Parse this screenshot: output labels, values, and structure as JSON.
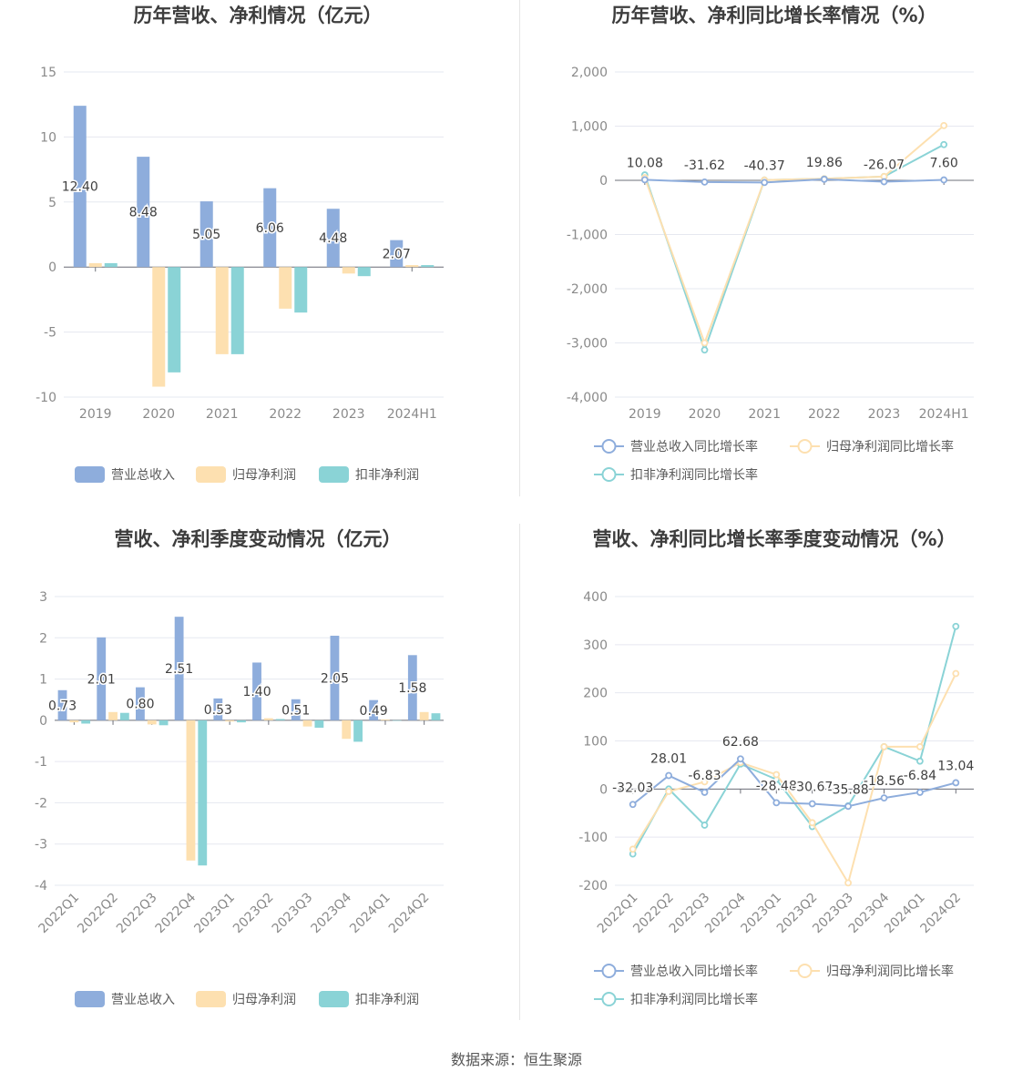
{
  "colors": {
    "revenue": "#8eaddc",
    "net_profit": "#fde0b0",
    "deducted_profit": "#8ad3d6",
    "grid": "#e6e8f0",
    "axis": "#6e7079",
    "text": "#8a8a8a"
  },
  "source_text": "数据来源：恒生聚源",
  "chart_data": [
    {
      "type": "bar",
      "title": "历年营收、净利情况（亿元）",
      "categories": [
        "2019",
        "2020",
        "2021",
        "2022",
        "2023",
        "2024H1"
      ],
      "ylim": [
        -10,
        15
      ],
      "y_ticks": [
        -10,
        -5,
        0,
        5,
        10,
        15
      ],
      "grid": true,
      "legend_position": "bottom",
      "series": [
        {
          "name": "营业总收入",
          "values": [
            12.4,
            8.48,
            5.05,
            6.06,
            4.48,
            2.07
          ],
          "labels": [
            "12.40",
            "8.48",
            "5.05",
            "6.06",
            "4.48",
            "2.07"
          ]
        },
        {
          "name": "归母净利润",
          "values": [
            0.3,
            -9.2,
            -6.7,
            -3.2,
            -0.5,
            0.15
          ]
        },
        {
          "name": "扣非净利润",
          "values": [
            0.3,
            -8.1,
            -6.7,
            -3.5,
            -0.7,
            0.15
          ]
        }
      ]
    },
    {
      "type": "line",
      "title": "历年营收、净利同比增长率情况（%）",
      "categories": [
        "2019",
        "2020",
        "2021",
        "2022",
        "2023",
        "2024H1"
      ],
      "ylim": [
        -4000,
        2000
      ],
      "y_ticks": [
        -4000,
        -3000,
        -2000,
        -1000,
        0,
        1000,
        2000
      ],
      "y_tick_labels": [
        "-4,000",
        "-3,000",
        "-2,000",
        "-1,000",
        "0",
        "1,000",
        "2,000"
      ],
      "grid": true,
      "legend_position": "bottom",
      "series": [
        {
          "name": "营业总收入同比增长率",
          "values": [
            10.08,
            -31.62,
            -40.37,
            19.86,
            -26.07,
            7.6
          ],
          "labels": [
            "10.08",
            "-31.62",
            "-40.37",
            "19.86",
            "-26.07",
            "7.60"
          ]
        },
        {
          "name": "归母净利润同比增长率",
          "values": [
            50,
            -3000,
            5,
            30,
            70,
            1010
          ]
        },
        {
          "name": "扣非净利润同比增长率",
          "values": [
            100,
            -3130,
            5,
            30,
            70,
            660
          ]
        }
      ]
    },
    {
      "type": "bar",
      "title": "营收、净利季度变动情况（亿元）",
      "categories": [
        "2022Q1",
        "2022Q2",
        "2022Q3",
        "2022Q4",
        "2023Q1",
        "2023Q2",
        "2023Q3",
        "2023Q4",
        "2024Q1",
        "2024Q2"
      ],
      "ylim": [
        -4,
        3
      ],
      "y_ticks": [
        -4,
        -3,
        -2,
        -1,
        0,
        1,
        2,
        3
      ],
      "grid": true,
      "legend_position": "bottom",
      "series": [
        {
          "name": "营业总收入",
          "values": [
            0.73,
            2.01,
            0.8,
            2.51,
            0.53,
            1.4,
            0.51,
            2.05,
            0.49,
            1.58
          ],
          "labels": [
            "0.73",
            "2.01",
            "0.80",
            "2.51",
            "0.53",
            "1.40",
            "0.51",
            "2.05",
            "0.49",
            "1.58"
          ]
        },
        {
          "name": "归母净利润",
          "values": [
            -0.05,
            0.2,
            -0.1,
            -3.4,
            -0.03,
            0.05,
            -0.15,
            -0.45,
            0.02,
            0.2
          ]
        },
        {
          "name": "扣非净利润",
          "values": [
            -0.08,
            0.18,
            -0.12,
            -3.52,
            -0.05,
            0.03,
            -0.18,
            -0.52,
            0.0,
            0.17
          ]
        }
      ]
    },
    {
      "type": "line",
      "title": "营收、净利同比增长率季度变动情况（%）",
      "categories": [
        "2022Q1",
        "2022Q2",
        "2022Q3",
        "2022Q4",
        "2023Q1",
        "2023Q2",
        "2023Q3",
        "2023Q4",
        "2024Q1",
        "2024Q2"
      ],
      "ylim": [
        -200,
        400
      ],
      "y_ticks": [
        -200,
        -100,
        0,
        100,
        200,
        300,
        400
      ],
      "grid": true,
      "legend_position": "bottom",
      "series": [
        {
          "name": "营业总收入同比增长率",
          "values": [
            -32.03,
            28.01,
            -6.83,
            62.68,
            -28.48,
            -30.67,
            -35.88,
            -18.56,
            -6.84,
            13.04
          ],
          "labels": [
            "-32.03",
            "28.01",
            "-6.83",
            "62.68",
            "-28.48",
            "-30.67",
            "-35.88",
            "-18.56",
            "-6.84",
            "13.04"
          ]
        },
        {
          "name": "归母净利润同比增长率",
          "values": [
            -125,
            -5,
            15,
            55,
            30,
            -70,
            -195,
            88,
            88,
            240
          ]
        },
        {
          "name": "扣非净利润同比增长率",
          "values": [
            -135,
            0,
            -75,
            52,
            20,
            -78,
            -35,
            88,
            58,
            338
          ]
        }
      ]
    }
  ]
}
